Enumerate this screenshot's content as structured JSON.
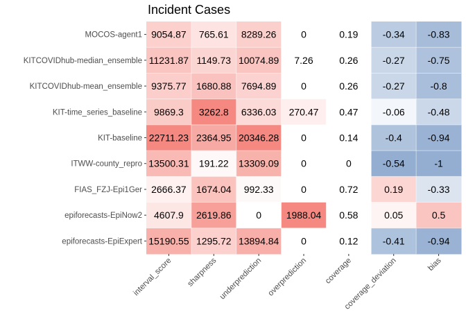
{
  "chart_data": {
    "type": "heatmap",
    "title": "Incident Cases",
    "columns": [
      "interval_score",
      "sharpness",
      "underprediction",
      "overprediction",
      "coverage",
      "coverage_deviation",
      "bias"
    ],
    "rows": [
      "MOCOS-agent1",
      "KITCOVIDhub-median_ensemble",
      "KITCOVIDhub-mean_ensemble",
      "KIT-time_series_baseline",
      "KIT-baseline",
      "ITWW-county_repro",
      "FIAS_FZJ-Epi1Ger",
      "epiforecasts-EpiNow2",
      "epiforecasts-EpiExpert"
    ],
    "values": [
      [
        "9054.87",
        "765.61",
        "8289.26",
        "0",
        "0.19",
        "-0.34",
        "-0.83"
      ],
      [
        "11231.87",
        "1149.73",
        "10074.89",
        "7.26",
        "0.26",
        "-0.27",
        "-0.75"
      ],
      [
        "9375.77",
        "1680.88",
        "7694.89",
        "0",
        "0.26",
        "-0.27",
        "-0.8"
      ],
      [
        "9869.3",
        "3262.8",
        "6336.03",
        "270.47",
        "0.47",
        "-0.06",
        "-0.48"
      ],
      [
        "22711.23",
        "2364.95",
        "20346.28",
        "0",
        "0.14",
        "-0.4",
        "-0.94"
      ],
      [
        "13500.31",
        "191.22",
        "13309.09",
        "0",
        "0",
        "-0.54",
        "-1"
      ],
      [
        "2666.37",
        "1674.04",
        "992.33",
        "0",
        "0.72",
        "0.19",
        "-0.33"
      ],
      [
        "4607.9",
        "2619.86",
        "0",
        "1988.04",
        "0.58",
        "0.05",
        "0.5"
      ],
      [
        "15190.55",
        "1295.72",
        "13894.84",
        "0",
        "0.12",
        "-0.41",
        "-0.94"
      ]
    ],
    "colors": {
      "positive": "#f4837a",
      "negative": "#8eaacf",
      "neutral": "#ffffff",
      "axis_text": "#4d4d4d"
    }
  }
}
